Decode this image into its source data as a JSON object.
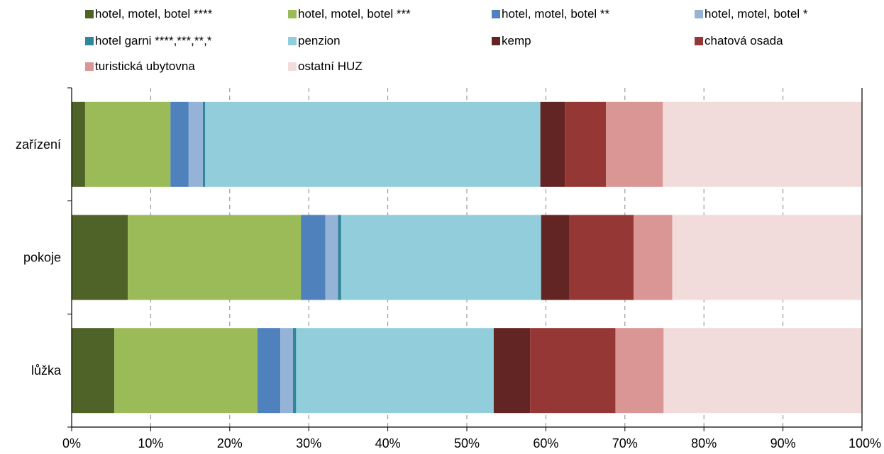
{
  "chart_data": {
    "type": "bar",
    "orientation": "horizontal",
    "stacked": "percent",
    "categories": [
      "zařízení",
      "pokoje",
      "lůžka"
    ],
    "series": [
      {
        "name": "hotel, motel, botel ****",
        "color": "#4f6228",
        "values": [
          1.7,
          7.1,
          5.4
        ]
      },
      {
        "name": "hotel, motel, botel ***",
        "color": "#9bbb59",
        "values": [
          10.8,
          21.9,
          18.1
        ]
      },
      {
        "name": "hotel, motel, botel **",
        "color": "#4f81bd",
        "values": [
          2.3,
          3.1,
          2.9
        ]
      },
      {
        "name": "hotel, motel, botel *",
        "color": "#95b3d7",
        "values": [
          1.8,
          1.6,
          1.6
        ]
      },
      {
        "name": "hotel garni ****,***,**,*",
        "color": "#31859c",
        "values": [
          0.3,
          0.4,
          0.4
        ]
      },
      {
        "name": "penzion",
        "color": "#92cddc",
        "values": [
          42.4,
          25.3,
          25.0
        ]
      },
      {
        "name": "kemp",
        "color": "#632523",
        "values": [
          3.1,
          3.6,
          4.6
        ]
      },
      {
        "name": "chatová osada",
        "color": "#953735",
        "values": [
          5.2,
          8.1,
          10.8
        ]
      },
      {
        "name": "turistická ubytovna",
        "color": "#d99694",
        "values": [
          7.2,
          4.9,
          6.1
        ]
      },
      {
        "name": "ostatní HUZ",
        "color": "#f2dcdb",
        "values": [
          25.2,
          24.0,
          25.1
        ]
      }
    ],
    "x_ticks": [
      "0%",
      "10%",
      "20%",
      "30%",
      "40%",
      "50%",
      "60%",
      "70%",
      "80%",
      "90%",
      "100%"
    ],
    "xlim": [
      0,
      100
    ],
    "grid": "vertical dashed",
    "legend_position": "top"
  }
}
